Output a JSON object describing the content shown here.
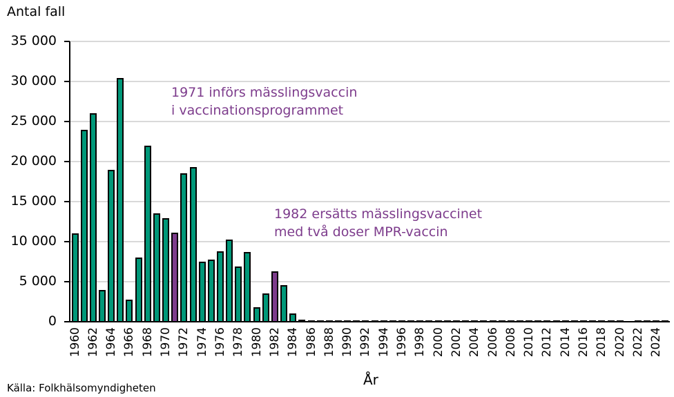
{
  "chart_data": {
    "type": "bar",
    "title": "",
    "ylabel": "Antal fall",
    "xlabel": "År",
    "ylim": [
      0,
      35000
    ],
    "yticks": [
      "0",
      "5 000",
      "10 000",
      "15 000",
      "20 000",
      "25 000",
      "30 000",
      "35 000"
    ],
    "grid": true,
    "categories": [
      1960,
      1961,
      1962,
      1963,
      1964,
      1965,
      1966,
      1967,
      1968,
      1969,
      1970,
      1971,
      1972,
      1973,
      1974,
      1975,
      1976,
      1977,
      1978,
      1979,
      1980,
      1981,
      1982,
      1983,
      1984,
      1985,
      1986,
      1987,
      1988,
      1989,
      1990,
      1991,
      1992,
      1993,
      1994,
      1995,
      1996,
      1997,
      1998,
      1999,
      2000,
      2001,
      2002,
      2003,
      2004,
      2005,
      2006,
      2007,
      2008,
      2009,
      2010,
      2011,
      2012,
      2013,
      2014,
      2015,
      2016,
      2017,
      2018,
      2019,
      2020,
      2021,
      2022,
      2023,
      2024,
      2025
    ],
    "values": [
      11000,
      24000,
      26000,
      4000,
      19000,
      30400,
      2800,
      8000,
      22000,
      13500,
      12900,
      11100,
      18500,
      19300,
      7500,
      7800,
      8800,
      10300,
      6900,
      8700,
      1800,
      3500,
      6300,
      4600,
      1000,
      300,
      120,
      60,
      40,
      40,
      40,
      40,
      30,
      30,
      30,
      30,
      30,
      30,
      30,
      30,
      30,
      30,
      30,
      30,
      30,
      30,
      30,
      30,
      30,
      30,
      30,
      30,
      30,
      30,
      30,
      30,
      30,
      30,
      30,
      30,
      20,
      0,
      30,
      30,
      30,
      30
    ],
    "highlight_years": [
      1971,
      1982
    ],
    "xtick_labels": [
      "1960",
      "1962",
      "1964",
      "1966",
      "1968",
      "1970",
      "1972",
      "1974",
      "1976",
      "1978",
      "1980",
      "1982",
      "1984",
      "1986",
      "1988",
      "1990",
      "1992",
      "1994",
      "1996",
      "1998",
      "2000",
      "2002",
      "2004",
      "2006",
      "2008",
      "2010",
      "2012",
      "2014",
      "2016",
      "2018",
      "2020",
      "2022",
      "2024"
    ],
    "colors": {
      "default": "#009879",
      "highlight": "#7d3c8c"
    },
    "annotations": [
      {
        "lines": [
          "1971 införs mässlingsvaccin",
          "i vaccinationsprogrammet"
        ]
      },
      {
        "lines": [
          "1982 ersätts mässlingsvaccinet",
          "med två doser MPR-vaccin"
        ]
      }
    ]
  },
  "source": "Källa: Folkhälsomyndigheten"
}
